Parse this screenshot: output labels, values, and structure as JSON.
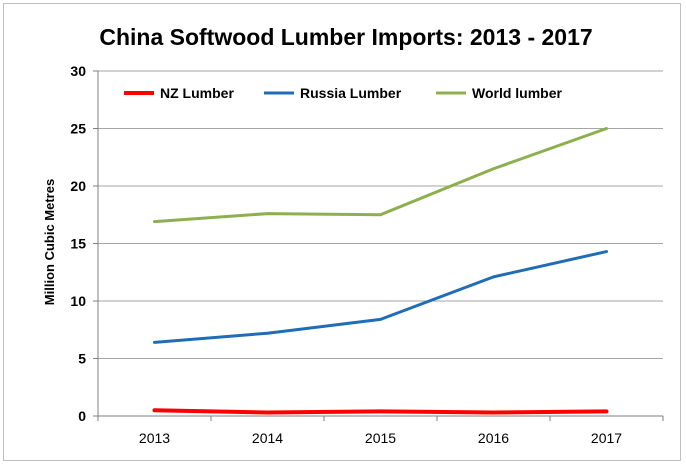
{
  "chart_data": {
    "type": "line",
    "title": "China Softwood  Lumber Imports: 2013 - 2017",
    "xlabel": "",
    "ylabel": "Million Cubic Metres",
    "categories": [
      "2013",
      "2014",
      "2015",
      "2016",
      "2017"
    ],
    "ylim": [
      0,
      30
    ],
    "yticks": [
      0,
      5,
      10,
      15,
      20,
      25,
      30
    ],
    "grid": true,
    "legend_position": "top",
    "series": [
      {
        "name": "NZ Lumber",
        "color": "#ff0000",
        "values": [
          0.5,
          0.3,
          0.4,
          0.3,
          0.4
        ]
      },
      {
        "name": "Russia Lumber",
        "color": "#1f6eb5",
        "values": [
          6.4,
          7.2,
          8.4,
          12.1,
          14.3
        ]
      },
      {
        "name": "World lumber",
        "color": "#8db04e",
        "values": [
          16.9,
          17.6,
          17.5,
          21.5,
          25.0
        ]
      }
    ]
  }
}
